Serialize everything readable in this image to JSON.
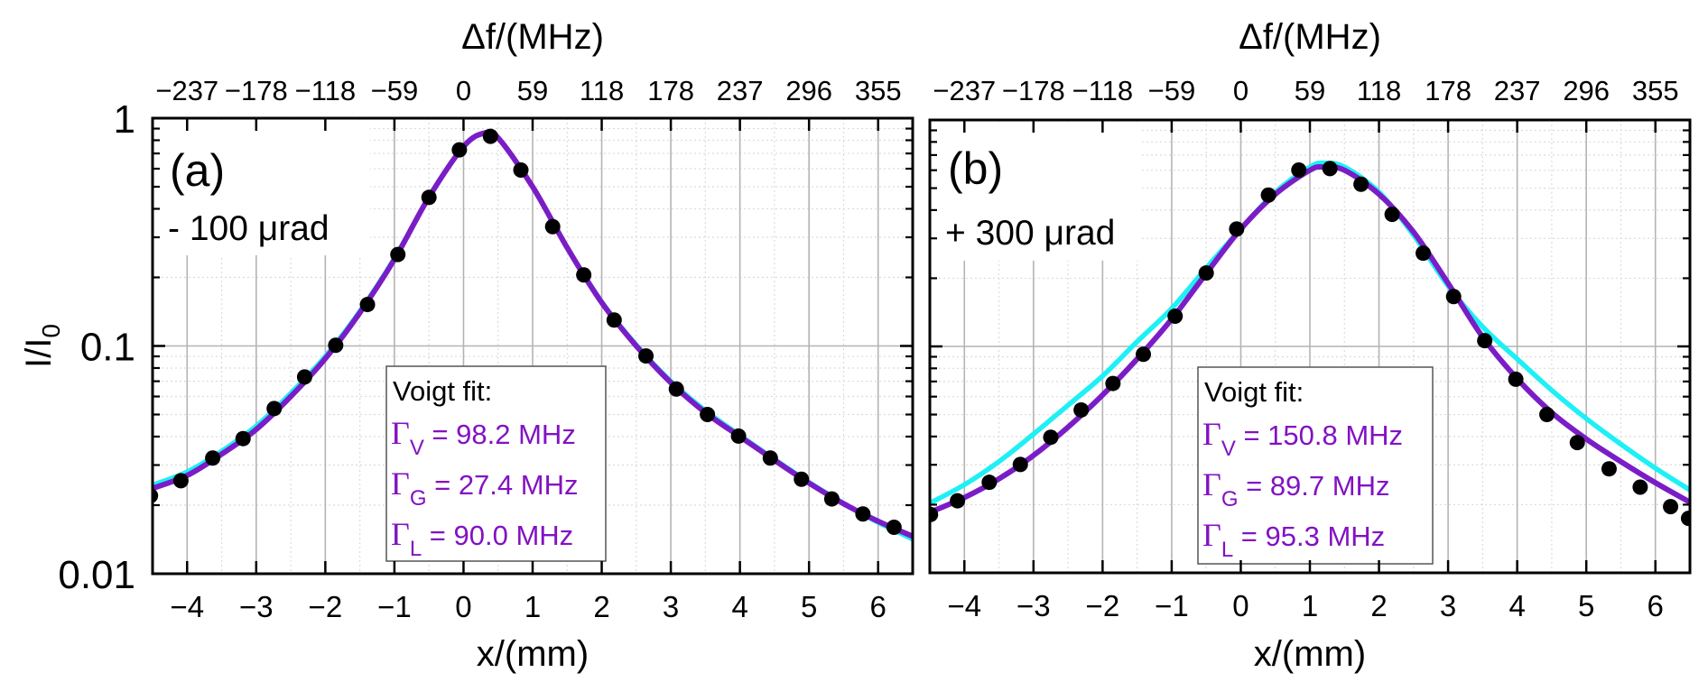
{
  "chart_data": [
    {
      "panel": "a",
      "type": "scatter",
      "panel_label": "(a)",
      "annotation": "- 100 μrad",
      "title": "Δf/(MHz)",
      "xlabel": "x/(mm)",
      "ylabel": {
        "main": "I/I",
        "sub": "0"
      },
      "xlim": [
        -4.5,
        6.5
      ],
      "ylim": [
        0.01,
        1
      ],
      "yscale": "log",
      "grid": true,
      "xticks": [
        -4,
        -3,
        -2,
        -1,
        0,
        1,
        2,
        3,
        4,
        5,
        6
      ],
      "xtick_labels": [
        "−4",
        "−3",
        "−2",
        "−1",
        "0",
        "1",
        "2",
        "3",
        "4",
        "5",
        "6"
      ],
      "top_tick_labels": [
        "−237",
        "−178",
        "−118",
        "−59",
        "0",
        "59",
        "118",
        "178",
        "237",
        "296",
        "355"
      ],
      "yticks": [
        1,
        0.1,
        0.01
      ],
      "ytick_labels": [
        "1",
        "0.1",
        "0.01"
      ],
      "legend": {
        "placement": "bottom-center",
        "title": "Voigt fit:",
        "lines": [
          {
            "symbol": "Γ",
            "sub": "V",
            "text": " = 98.2 MHz"
          },
          {
            "symbol": "Γ",
            "sub": "G",
            "text": " = 27.4 MHz"
          },
          {
            "symbol": "Γ",
            "sub": "L",
            "text": " = 90.0 MHz"
          }
        ]
      },
      "series": [
        {
          "name": "measured",
          "kind": "points",
          "color": "#000000",
          "x": [
            -4.53,
            -4.09,
            -3.63,
            -3.19,
            -2.74,
            -2.3,
            -1.85,
            -1.39,
            -0.95,
            -0.5,
            -0.06,
            0.39,
            0.83,
            1.29,
            1.74,
            2.18,
            2.64,
            3.08,
            3.53,
            3.98,
            4.44,
            4.89,
            5.33,
            5.78,
            6.23
          ],
          "y": [
            0.022,
            0.0256,
            0.0322,
            0.0392,
            0.0531,
            0.0731,
            0.1007,
            0.152,
            0.252,
            0.449,
            0.726,
            0.832,
            0.592,
            0.334,
            0.205,
            0.13,
            0.0904,
            0.0647,
            0.05,
            0.0402,
            0.0322,
            0.026,
            0.0213,
            0.0183,
            0.016
          ]
        },
        {
          "name": "cyan fit",
          "kind": "line",
          "color": "#1ef0f5",
          "x": [
            -4.5,
            -4,
            -3.5,
            -3,
            -2.5,
            -2,
            -1.5,
            -1,
            -0.5,
            0,
            0.3,
            0.5,
            1,
            1.5,
            2,
            2.5,
            3,
            3.5,
            4,
            4.5,
            5,
            5.5,
            6,
            6.5
          ],
          "y": [
            0.0245,
            0.028,
            0.0345,
            0.0445,
            0.062,
            0.09,
            0.142,
            0.242,
            0.45,
            0.75,
            0.86,
            0.82,
            0.5,
            0.27,
            0.156,
            0.101,
            0.07,
            0.052,
            0.0405,
            0.0318,
            0.0252,
            0.0204,
            0.0168,
            0.0142
          ]
        },
        {
          "name": "Voigt fit",
          "kind": "line",
          "color": "#7a1dc6",
          "x": [
            -4.5,
            -4,
            -3.5,
            -3,
            -2.5,
            -2,
            -1.5,
            -1,
            -0.5,
            0,
            0.3,
            0.5,
            1,
            1.5,
            2,
            2.5,
            3,
            3.5,
            4,
            4.5,
            5,
            5.5,
            6,
            6.5
          ],
          "y": [
            0.0237,
            0.027,
            0.0335,
            0.043,
            0.06,
            0.088,
            0.14,
            0.24,
            0.45,
            0.75,
            0.86,
            0.82,
            0.5,
            0.27,
            0.155,
            0.1,
            0.069,
            0.051,
            0.04,
            0.0315,
            0.025,
            0.0203,
            0.017,
            0.0146
          ]
        }
      ]
    },
    {
      "panel": "b",
      "type": "scatter",
      "panel_label": "(b)",
      "annotation": "+ 300 μrad",
      "title": "Δf/(MHz)",
      "xlabel": "x/(mm)",
      "xlim": [
        -4.5,
        6.5
      ],
      "ylim": [
        0.01,
        1
      ],
      "yscale": "log",
      "grid": true,
      "xticks": [
        -4,
        -3,
        -2,
        -1,
        0,
        1,
        2,
        3,
        4,
        5,
        6
      ],
      "xtick_labels": [
        "−4",
        "−3",
        "−2",
        "−1",
        "0",
        "1",
        "2",
        "3",
        "4",
        "5",
        "6"
      ],
      "top_tick_labels": [
        "−237",
        "−178",
        "−118",
        "−59",
        "0",
        "59",
        "118",
        "178",
        "237",
        "296",
        "355"
      ],
      "legend": {
        "placement": "bottom-center",
        "title": "Voigt fit:",
        "lines": [
          {
            "symbol": "Γ",
            "sub": "V",
            "text": " = 150.8 MHz"
          },
          {
            "symbol": "Γ",
            "sub": "G",
            "text": " = 89.7 MHz"
          },
          {
            "symbol": "Γ",
            "sub": "L",
            "text": " = 95.3 MHz"
          }
        ]
      },
      "series": [
        {
          "name": "measured",
          "kind": "points",
          "color": "#000000",
          "x": [
            -4.49,
            -4.1,
            -3.64,
            -3.19,
            -2.75,
            -2.31,
            -1.85,
            -1.41,
            -0.95,
            -0.5,
            -0.06,
            0.4,
            0.84,
            1.29,
            1.74,
            2.19,
            2.64,
            3.08,
            3.53,
            3.98,
            4.43,
            4.87,
            5.33,
            5.78,
            6.22,
            6.48
          ],
          "y": [
            0.0181,
            0.0208,
            0.0251,
            0.0301,
            0.0397,
            0.0524,
            0.0686,
            0.0923,
            0.136,
            0.211,
            0.33,
            0.466,
            0.601,
            0.61,
            0.52,
            0.383,
            0.258,
            0.166,
            0.106,
            0.0716,
            0.05,
            0.0376,
            0.0288,
            0.0239,
            0.0196,
            0.0174
          ]
        },
        {
          "name": "cyan fit",
          "kind": "line",
          "color": "#1ef0f5",
          "x": [
            -4.5,
            -4,
            -3.5,
            -3,
            -2.5,
            -2,
            -1.5,
            -1,
            -0.5,
            0,
            0.5,
            1,
            1.2,
            1.5,
            2,
            2.5,
            3,
            3.5,
            4,
            4.5,
            5,
            5.5,
            6,
            6.5
          ],
          "y": [
            0.0203,
            0.0245,
            0.031,
            0.041,
            0.055,
            0.074,
            0.105,
            0.147,
            0.222,
            0.33,
            0.48,
            0.62,
            0.645,
            0.62,
            0.48,
            0.31,
            0.185,
            0.122,
            0.088,
            0.064,
            0.048,
            0.037,
            0.029,
            0.0232
          ]
        },
        {
          "name": "Voigt fit",
          "kind": "line",
          "color": "#7a1dc6",
          "x": [
            -4.5,
            -4,
            -3.5,
            -3,
            -2.5,
            -2,
            -1.5,
            -1,
            -0.5,
            0,
            0.5,
            1,
            1.2,
            1.5,
            2,
            2.5,
            3,
            3.5,
            4,
            4.5,
            5,
            5.5,
            6,
            6.5
          ],
          "y": [
            0.0185,
            0.0215,
            0.026,
            0.033,
            0.044,
            0.061,
            0.088,
            0.132,
            0.21,
            0.33,
            0.47,
            0.6,
            0.62,
            0.6,
            0.47,
            0.32,
            0.19,
            0.11,
            0.072,
            0.051,
            0.039,
            0.031,
            0.025,
            0.0205
          ]
        }
      ]
    }
  ],
  "colors": {
    "legend_text": "#8212c2",
    "axis": "#000000",
    "grid": "#b4b4b4"
  }
}
